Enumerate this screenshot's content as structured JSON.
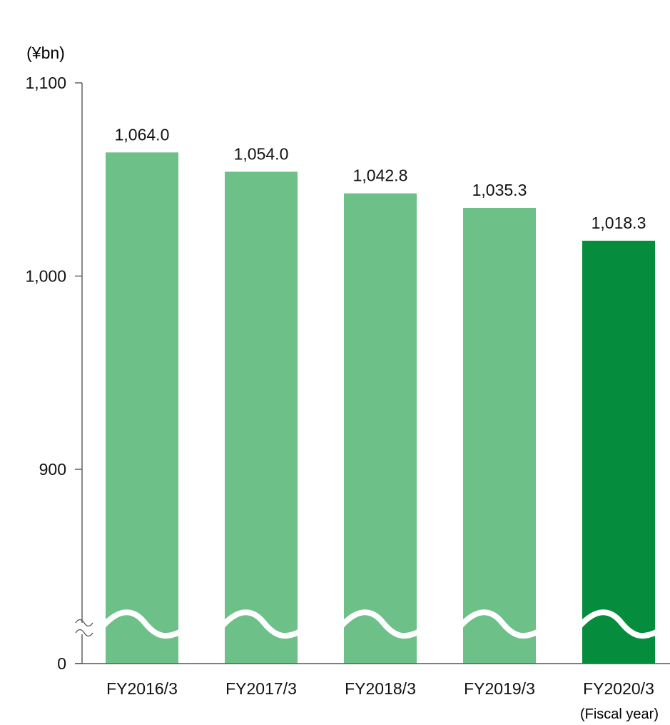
{
  "chart_data": {
    "type": "bar",
    "unit_label": "(¥bn)",
    "x_axis_note": "(Fiscal year)",
    "categories": [
      "FY2016/3",
      "FY2017/3",
      "FY2018/3",
      "FY2019/3",
      "FY2020/3"
    ],
    "values": [
      1064.0,
      1054.0,
      1042.8,
      1035.3,
      1018.3
    ],
    "value_labels": [
      "1,064.0",
      "1,054.0",
      "1,042.8",
      "1,035.3",
      "1,018.3"
    ],
    "y_ticks": [
      {
        "value": 0,
        "label": "0"
      },
      {
        "value": 900,
        "label": "900"
      },
      {
        "value": 1000,
        "label": "1,000"
      },
      {
        "value": 1100,
        "label": "1,100"
      }
    ],
    "ylim": [
      0,
      1100
    ],
    "axis_break": true,
    "grid": false,
    "colors": {
      "bar": "#6cc088",
      "highlight_bar": "#058c3c",
      "axis": "#555555",
      "text": "#111111"
    },
    "highlight_index": 4
  }
}
